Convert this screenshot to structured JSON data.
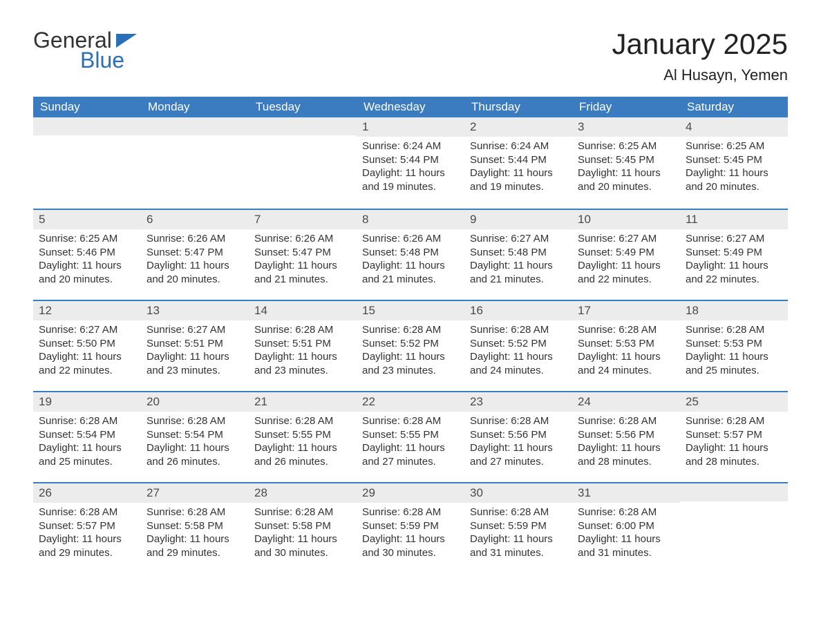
{
  "logo": {
    "text_general": "General",
    "text_blue": "Blue"
  },
  "title": {
    "month": "January 2025",
    "location": "Al Husayn, Yemen"
  },
  "style": {
    "header_bg": "#3b7bbf",
    "header_text": "#ffffff",
    "daynum_bg": "#ececec",
    "week_border": "#3b7bbf",
    "logo_blue": "#2a70b8",
    "body_text": "#333333"
  },
  "weekdays": [
    "Sunday",
    "Monday",
    "Tuesday",
    "Wednesday",
    "Thursday",
    "Friday",
    "Saturday"
  ],
  "weeks": [
    [
      {
        "num": "",
        "lines": []
      },
      {
        "num": "",
        "lines": []
      },
      {
        "num": "",
        "lines": []
      },
      {
        "num": "1",
        "lines": [
          "Sunrise: 6:24 AM",
          "Sunset: 5:44 PM",
          "Daylight: 11 hours and 19 minutes."
        ]
      },
      {
        "num": "2",
        "lines": [
          "Sunrise: 6:24 AM",
          "Sunset: 5:44 PM",
          "Daylight: 11 hours and 19 minutes."
        ]
      },
      {
        "num": "3",
        "lines": [
          "Sunrise: 6:25 AM",
          "Sunset: 5:45 PM",
          "Daylight: 11 hours and 20 minutes."
        ]
      },
      {
        "num": "4",
        "lines": [
          "Sunrise: 6:25 AM",
          "Sunset: 5:45 PM",
          "Daylight: 11 hours and 20 minutes."
        ]
      }
    ],
    [
      {
        "num": "5",
        "lines": [
          "Sunrise: 6:25 AM",
          "Sunset: 5:46 PM",
          "Daylight: 11 hours and 20 minutes."
        ]
      },
      {
        "num": "6",
        "lines": [
          "Sunrise: 6:26 AM",
          "Sunset: 5:47 PM",
          "Daylight: 11 hours and 20 minutes."
        ]
      },
      {
        "num": "7",
        "lines": [
          "Sunrise: 6:26 AM",
          "Sunset: 5:47 PM",
          "Daylight: 11 hours and 21 minutes."
        ]
      },
      {
        "num": "8",
        "lines": [
          "Sunrise: 6:26 AM",
          "Sunset: 5:48 PM",
          "Daylight: 11 hours and 21 minutes."
        ]
      },
      {
        "num": "9",
        "lines": [
          "Sunrise: 6:27 AM",
          "Sunset: 5:48 PM",
          "Daylight: 11 hours and 21 minutes."
        ]
      },
      {
        "num": "10",
        "lines": [
          "Sunrise: 6:27 AM",
          "Sunset: 5:49 PM",
          "Daylight: 11 hours and 22 minutes."
        ]
      },
      {
        "num": "11",
        "lines": [
          "Sunrise: 6:27 AM",
          "Sunset: 5:49 PM",
          "Daylight: 11 hours and 22 minutes."
        ]
      }
    ],
    [
      {
        "num": "12",
        "lines": [
          "Sunrise: 6:27 AM",
          "Sunset: 5:50 PM",
          "Daylight: 11 hours and 22 minutes."
        ]
      },
      {
        "num": "13",
        "lines": [
          "Sunrise: 6:27 AM",
          "Sunset: 5:51 PM",
          "Daylight: 11 hours and 23 minutes."
        ]
      },
      {
        "num": "14",
        "lines": [
          "Sunrise: 6:28 AM",
          "Sunset: 5:51 PM",
          "Daylight: 11 hours and 23 minutes."
        ]
      },
      {
        "num": "15",
        "lines": [
          "Sunrise: 6:28 AM",
          "Sunset: 5:52 PM",
          "Daylight: 11 hours and 23 minutes."
        ]
      },
      {
        "num": "16",
        "lines": [
          "Sunrise: 6:28 AM",
          "Sunset: 5:52 PM",
          "Daylight: 11 hours and 24 minutes."
        ]
      },
      {
        "num": "17",
        "lines": [
          "Sunrise: 6:28 AM",
          "Sunset: 5:53 PM",
          "Daylight: 11 hours and 24 minutes."
        ]
      },
      {
        "num": "18",
        "lines": [
          "Sunrise: 6:28 AM",
          "Sunset: 5:53 PM",
          "Daylight: 11 hours and 25 minutes."
        ]
      }
    ],
    [
      {
        "num": "19",
        "lines": [
          "Sunrise: 6:28 AM",
          "Sunset: 5:54 PM",
          "Daylight: 11 hours and 25 minutes."
        ]
      },
      {
        "num": "20",
        "lines": [
          "Sunrise: 6:28 AM",
          "Sunset: 5:54 PM",
          "Daylight: 11 hours and 26 minutes."
        ]
      },
      {
        "num": "21",
        "lines": [
          "Sunrise: 6:28 AM",
          "Sunset: 5:55 PM",
          "Daylight: 11 hours and 26 minutes."
        ]
      },
      {
        "num": "22",
        "lines": [
          "Sunrise: 6:28 AM",
          "Sunset: 5:55 PM",
          "Daylight: 11 hours and 27 minutes."
        ]
      },
      {
        "num": "23",
        "lines": [
          "Sunrise: 6:28 AM",
          "Sunset: 5:56 PM",
          "Daylight: 11 hours and 27 minutes."
        ]
      },
      {
        "num": "24",
        "lines": [
          "Sunrise: 6:28 AM",
          "Sunset: 5:56 PM",
          "Daylight: 11 hours and 28 minutes."
        ]
      },
      {
        "num": "25",
        "lines": [
          "Sunrise: 6:28 AM",
          "Sunset: 5:57 PM",
          "Daylight: 11 hours and 28 minutes."
        ]
      }
    ],
    [
      {
        "num": "26",
        "lines": [
          "Sunrise: 6:28 AM",
          "Sunset: 5:57 PM",
          "Daylight: 11 hours and 29 minutes."
        ]
      },
      {
        "num": "27",
        "lines": [
          "Sunrise: 6:28 AM",
          "Sunset: 5:58 PM",
          "Daylight: 11 hours and 29 minutes."
        ]
      },
      {
        "num": "28",
        "lines": [
          "Sunrise: 6:28 AM",
          "Sunset: 5:58 PM",
          "Daylight: 11 hours and 30 minutes."
        ]
      },
      {
        "num": "29",
        "lines": [
          "Sunrise: 6:28 AM",
          "Sunset: 5:59 PM",
          "Daylight: 11 hours and 30 minutes."
        ]
      },
      {
        "num": "30",
        "lines": [
          "Sunrise: 6:28 AM",
          "Sunset: 5:59 PM",
          "Daylight: 11 hours and 31 minutes."
        ]
      },
      {
        "num": "31",
        "lines": [
          "Sunrise: 6:28 AM",
          "Sunset: 6:00 PM",
          "Daylight: 11 hours and 31 minutes."
        ]
      },
      {
        "num": "",
        "lines": []
      }
    ]
  ]
}
